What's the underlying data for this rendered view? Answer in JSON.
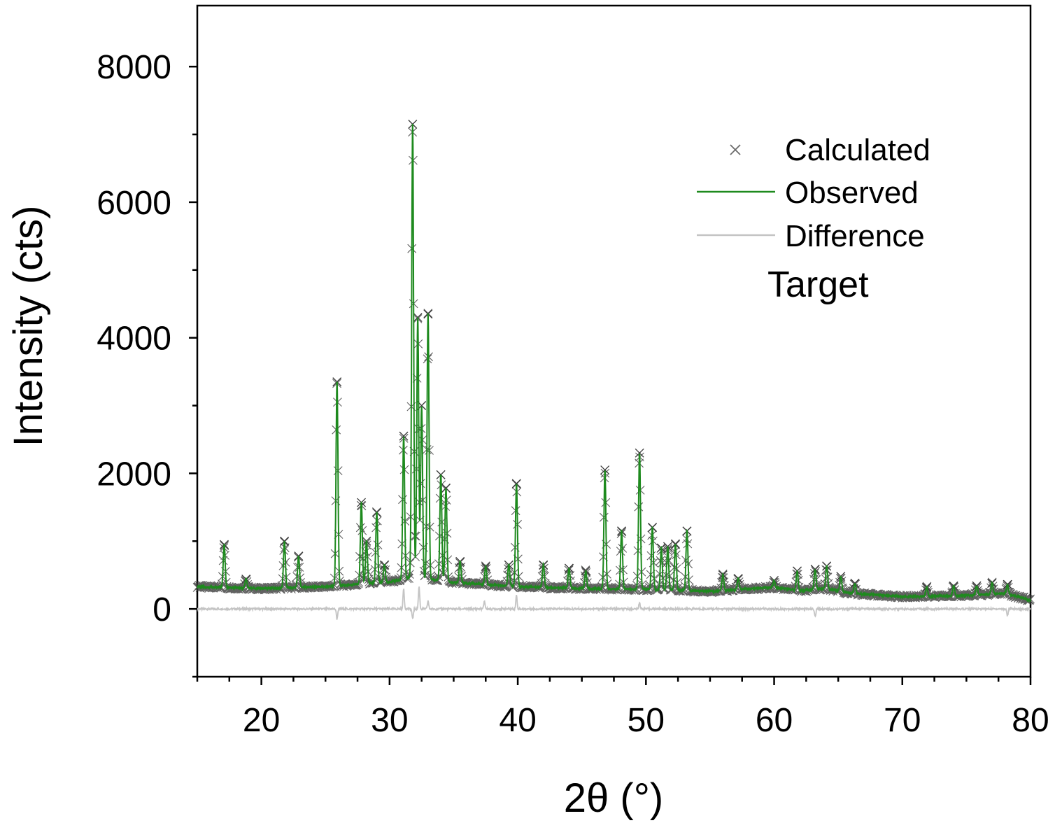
{
  "chart_data": {
    "type": "line",
    "title": "",
    "xlabel": "2θ (°)",
    "ylabel": "Intensity (cts)",
    "xlim": [
      15,
      80
    ],
    "ylim": [
      -1000,
      8900
    ],
    "x_ticks": [
      20,
      30,
      40,
      50,
      60,
      70,
      80
    ],
    "x_tick_labels": [
      "20",
      "30",
      "40",
      "50",
      "60",
      "70",
      "80"
    ],
    "y_ticks": [
      0,
      2000,
      4000,
      6000,
      8000
    ],
    "y_tick_labels": [
      "0",
      "2000",
      "4000",
      "6000",
      "8000"
    ],
    "grid": false,
    "legend_position": "top-right",
    "annotation": "Target",
    "series": [
      {
        "name": "Calculated",
        "style": "markers-x",
        "color": "#3a3a3a"
      },
      {
        "name": "Observed",
        "style": "line",
        "color": "#1e8a1e"
      },
      {
        "name": "Difference",
        "style": "line",
        "color": "#c4c4c4"
      }
    ],
    "background": [
      [
        15,
        330
      ],
      [
        20,
        300
      ],
      [
        25,
        330
      ],
      [
        30,
        400
      ],
      [
        32,
        470
      ],
      [
        35,
        390
      ],
      [
        40,
        330
      ],
      [
        45,
        300
      ],
      [
        50,
        290
      ],
      [
        55,
        260
      ],
      [
        60,
        320
      ],
      [
        62,
        270
      ],
      [
        64,
        300
      ],
      [
        66,
        230
      ],
      [
        70,
        180
      ],
      [
        75,
        200
      ],
      [
        78,
        230
      ],
      [
        80,
        130
      ]
    ],
    "peaks": [
      {
        "x": 17.1,
        "y": 950
      },
      {
        "x": 18.8,
        "y": 440
      },
      {
        "x": 21.8,
        "y": 1000
      },
      {
        "x": 22.9,
        "y": 780
      },
      {
        "x": 25.9,
        "y": 3350
      },
      {
        "x": 27.8,
        "y": 1570
      },
      {
        "x": 28.2,
        "y": 1000
      },
      {
        "x": 29.0,
        "y": 1420
      },
      {
        "x": 29.6,
        "y": 650
      },
      {
        "x": 31.1,
        "y": 2550
      },
      {
        "x": 31.8,
        "y": 7150
      },
      {
        "x": 32.2,
        "y": 4300
      },
      {
        "x": 32.5,
        "y": 3000
      },
      {
        "x": 33.0,
        "y": 4350
      },
      {
        "x": 34.0,
        "y": 1980
      },
      {
        "x": 34.4,
        "y": 1780
      },
      {
        "x": 35.5,
        "y": 700
      },
      {
        "x": 37.5,
        "y": 620
      },
      {
        "x": 39.3,
        "y": 650
      },
      {
        "x": 39.9,
        "y": 1850
      },
      {
        "x": 42.0,
        "y": 650
      },
      {
        "x": 44.0,
        "y": 600
      },
      {
        "x": 45.3,
        "y": 560
      },
      {
        "x": 46.8,
        "y": 2050
      },
      {
        "x": 48.1,
        "y": 1150
      },
      {
        "x": 49.5,
        "y": 2300
      },
      {
        "x": 50.5,
        "y": 1200
      },
      {
        "x": 51.2,
        "y": 900
      },
      {
        "x": 51.7,
        "y": 920
      },
      {
        "x": 52.3,
        "y": 950
      },
      {
        "x": 53.2,
        "y": 1150
      },
      {
        "x": 56.0,
        "y": 500
      },
      {
        "x": 57.2,
        "y": 450
      },
      {
        "x": 60.0,
        "y": 420
      },
      {
        "x": 61.8,
        "y": 560
      },
      {
        "x": 63.2,
        "y": 580
      },
      {
        "x": 64.1,
        "y": 630
      },
      {
        "x": 65.2,
        "y": 480
      },
      {
        "x": 66.3,
        "y": 380
      },
      {
        "x": 71.9,
        "y": 320
      },
      {
        "x": 74.0,
        "y": 340
      },
      {
        "x": 75.8,
        "y": 340
      },
      {
        "x": 77.0,
        "y": 380
      },
      {
        "x": 78.2,
        "y": 360
      }
    ],
    "difference_spikes": [
      {
        "x": 25.9,
        "y": -150
      },
      {
        "x": 31.1,
        "y": 300
      },
      {
        "x": 31.8,
        "y": -150
      },
      {
        "x": 32.3,
        "y": 330
      },
      {
        "x": 33.0,
        "y": 120
      },
      {
        "x": 37.4,
        "y": 120
      },
      {
        "x": 39.9,
        "y": 200
      },
      {
        "x": 49.5,
        "y": 100
      },
      {
        "x": 63.2,
        "y": -120
      },
      {
        "x": 78.2,
        "y": -100
      }
    ]
  }
}
